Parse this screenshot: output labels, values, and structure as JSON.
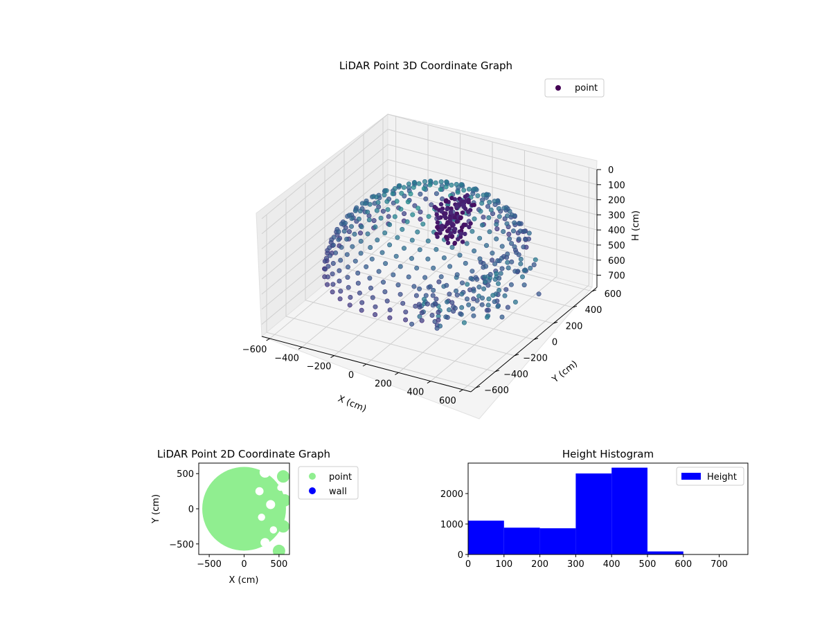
{
  "figure": {
    "charts_note": "three subplots"
  },
  "chart_data": [
    {
      "type": "scatter",
      "projection": "3d",
      "title": "LiDAR Point 3D Coordinate Graph",
      "xlabel": "X (cm)",
      "ylabel": "Y (cm)",
      "zlabel": "H (cm)",
      "xlim": [
        -650,
        650
      ],
      "ylim": [
        -650,
        650
      ],
      "zlim": [
        780,
        0
      ],
      "z_inverted": true,
      "xticks": [
        -600,
        -400,
        -200,
        0,
        200,
        400,
        600
      ],
      "yticks": [
        -600,
        -400,
        -200,
        0,
        200,
        400,
        600
      ],
      "zticks": [
        0,
        100,
        200,
        300,
        400,
        500,
        600,
        700
      ],
      "grid": true,
      "legend": {
        "placement": "top-right",
        "entries": [
          "point"
        ],
        "colors": [
          "#440154"
        ]
      },
      "colormap": "viridis",
      "series": [
        {
          "name": "point",
          "shape": "hemispherical dome of points, radius about 560 cm, height 0–500 cm, plus scattered wall points",
          "dome": {
            "radius": 560,
            "h_min": 20,
            "h_max": 500
          },
          "sample_points": [
            {
              "x": 150,
              "y": 580,
              "h": 380
            },
            {
              "x": 350,
              "y": 450,
              "h": 400
            },
            {
              "x": 500,
              "y": 250,
              "h": 460
            },
            {
              "x": 560,
              "y": 50,
              "h": 470
            },
            {
              "x": 480,
              "y": -250,
              "h": 420
            },
            {
              "x": 320,
              "y": -420,
              "h": 560
            },
            {
              "x": 560,
              "y": 200,
              "h": 610
            },
            {
              "x": 430,
              "y": -100,
              "h": 520
            }
          ]
        }
      ]
    },
    {
      "type": "scatter",
      "title": "LiDAR Point 2D Coordinate Graph",
      "xlabel": "X (cm)",
      "ylabel": "Y (cm)",
      "xlim": [
        -650,
        650
      ],
      "ylim": [
        -650,
        650
      ],
      "xticks": [
        -500,
        0,
        500
      ],
      "yticks": [
        -500,
        0,
        500
      ],
      "legend": {
        "placement": "outside-right",
        "entries": [
          "point",
          "wall"
        ],
        "colors": [
          "#90ee90",
          "#0000ff"
        ]
      },
      "series": [
        {
          "name": "point",
          "color": "#90ee90",
          "shape": "filled disk of radius about 600 cm, with gaps on the right side"
        },
        {
          "name": "wall",
          "color": "#0000ff",
          "values": []
        }
      ]
    },
    {
      "type": "bar",
      "subtype": "histogram",
      "title": "Height Histogram",
      "xlabel": "",
      "ylabel": "",
      "xlim": [
        0,
        780
      ],
      "ylim": [
        0,
        3000
      ],
      "xticks": [
        0,
        100,
        200,
        300,
        400,
        500,
        600,
        700
      ],
      "yticks": [
        0,
        1000,
        2000
      ],
      "legend": {
        "placement": "top-right",
        "entries": [
          "Height"
        ]
      },
      "bar_color": "#0000ff",
      "bins": [
        {
          "from": 0,
          "to": 100,
          "count": 1110
        },
        {
          "from": 100,
          "to": 200,
          "count": 880
        },
        {
          "from": 200,
          "to": 300,
          "count": 860
        },
        {
          "from": 300,
          "to": 400,
          "count": 2660
        },
        {
          "from": 400,
          "to": 500,
          "count": 2850
        },
        {
          "from": 500,
          "to": 600,
          "count": 100
        },
        {
          "from": 600,
          "to": 700,
          "count": 5
        }
      ]
    }
  ]
}
